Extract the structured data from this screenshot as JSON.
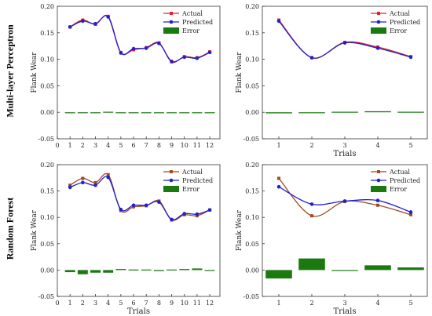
{
  "row_labels": [
    "Multi-layer Perceptron",
    "Random Forest"
  ],
  "colors": {
    "actual_mlp": "#e8202a",
    "actual_rf": "#a04a1e",
    "predicted": "#2020d0",
    "error": "#1a7a10",
    "axis": "#333333"
  },
  "chart_data": [
    {
      "type": "line",
      "xlabel": "",
      "ylabel": "Flank Wear",
      "xlim": [
        0,
        12.8
      ],
      "ylim": [
        -0.05,
        0.2
      ],
      "xticks": [
        0,
        1,
        2,
        3,
        4,
        5,
        6,
        7,
        8,
        9,
        10,
        11,
        12
      ],
      "yticks": [
        "-0.05",
        "0.00",
        "0.05",
        "0.10",
        "0.15",
        "0.20"
      ],
      "yticks_values": [
        -0.05,
        0.0,
        0.05,
        0.1,
        0.15,
        0.2
      ],
      "legend": "top-right",
      "x": [
        1,
        2,
        3,
        4,
        5,
        6,
        7,
        8,
        9,
        10,
        11,
        12
      ],
      "series": [
        {
          "name": "Actual",
          "style": "line",
          "values": [
            0.161,
            0.174,
            0.166,
            0.181,
            0.113,
            0.118,
            0.122,
            0.131,
            0.095,
            0.105,
            0.103,
            0.114
          ]
        },
        {
          "name": "Predicted",
          "style": "line",
          "values": [
            0.161,
            0.172,
            0.167,
            0.18,
            0.112,
            0.12,
            0.121,
            0.13,
            0.096,
            0.104,
            0.102,
            0.113
          ]
        },
        {
          "name": "Error",
          "style": "bar",
          "values": [
            0.0,
            0.0,
            0.0,
            0.001,
            0.0,
            0.0,
            0.0,
            0.0,
            0.0,
            0.0,
            0.0,
            0.0
          ]
        }
      ]
    },
    {
      "type": "line",
      "xlabel": "Trials",
      "ylabel": "Flank Wear",
      "xlim": [
        0.5,
        5.5
      ],
      "ylim": [
        -0.05,
        0.2
      ],
      "xticks": [
        1,
        2,
        3,
        4,
        5
      ],
      "yticks": [
        "-0.05",
        "0.00",
        "0.05",
        "0.10",
        "0.15",
        "0.20"
      ],
      "yticks_values": [
        -0.05,
        0.0,
        0.05,
        0.1,
        0.15,
        0.2
      ],
      "legend": "top-right",
      "x": [
        1,
        2,
        3,
        4,
        5
      ],
      "series": [
        {
          "name": "Actual",
          "style": "line",
          "values": [
            0.174,
            0.103,
            0.132,
            0.123,
            0.105
          ]
        },
        {
          "name": "Predicted",
          "style": "line",
          "values": [
            0.172,
            0.103,
            0.131,
            0.121,
            0.104
          ]
        },
        {
          "name": "Error",
          "style": "bar",
          "values": [
            -0.002,
            0.0,
            0.001,
            0.002,
            0.001
          ]
        }
      ]
    },
    {
      "type": "line",
      "xlabel": "Trials",
      "ylabel": "Flank Wear",
      "xlim": [
        0,
        12.8
      ],
      "ylim": [
        -0.05,
        0.2
      ],
      "xticks": [
        0,
        1,
        2,
        3,
        4,
        5,
        6,
        7,
        8,
        9,
        10,
        11,
        12
      ],
      "yticks": [
        "-0.05",
        "0.00",
        "0.05",
        "0.10",
        "0.15",
        "0.20"
      ],
      "yticks_values": [
        -0.05,
        0.0,
        0.05,
        0.1,
        0.15,
        0.2
      ],
      "legend": "top-right",
      "x": [
        1,
        2,
        3,
        4,
        5,
        6,
        7,
        8,
        9,
        10,
        11,
        12
      ],
      "series": [
        {
          "name": "Actual",
          "style": "line",
          "values": [
            0.161,
            0.174,
            0.166,
            0.181,
            0.113,
            0.12,
            0.122,
            0.131,
            0.095,
            0.105,
            0.103,
            0.114
          ]
        },
        {
          "name": "Predicted",
          "style": "line",
          "values": [
            0.157,
            0.166,
            0.161,
            0.176,
            0.115,
            0.123,
            0.123,
            0.129,
            0.096,
            0.107,
            0.106,
            0.114
          ]
        },
        {
          "name": "Error",
          "style": "bar",
          "values": [
            -0.004,
            -0.008,
            -0.005,
            -0.005,
            0.002,
            0.001,
            0.001,
            -0.002,
            0.001,
            0.002,
            0.003,
            0.0
          ]
        }
      ]
    },
    {
      "type": "line",
      "xlabel": "Trials",
      "ylabel": "Flank Wear",
      "xlim": [
        0.5,
        5.5
      ],
      "ylim": [
        -0.05,
        0.2
      ],
      "xticks": [
        1,
        2,
        3,
        4,
        5
      ],
      "yticks": [
        "-0.05",
        "0.00",
        "0.05",
        "0.10",
        "0.15",
        "0.20"
      ],
      "yticks_values": [
        -0.05,
        0.0,
        0.05,
        0.1,
        0.15,
        0.2
      ],
      "legend": "top-right",
      "x": [
        1,
        2,
        3,
        4,
        5
      ],
      "series": [
        {
          "name": "Actual",
          "style": "line",
          "values": [
            0.174,
            0.103,
            0.13,
            0.123,
            0.105
          ]
        },
        {
          "name": "Predicted",
          "style": "line",
          "values": [
            0.158,
            0.125,
            0.131,
            0.132,
            0.11
          ]
        },
        {
          "name": "Error",
          "style": "bar",
          "values": [
            -0.016,
            0.022,
            -0.001,
            0.009,
            0.005
          ]
        }
      ]
    }
  ]
}
